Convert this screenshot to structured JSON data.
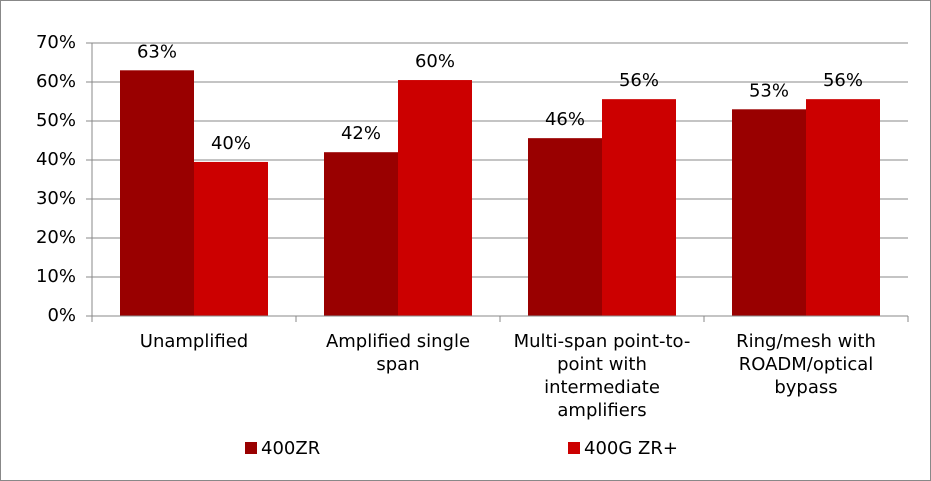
{
  "chart_data": {
    "type": "bar",
    "categories": [
      "Unamplified",
      "Amplified single span",
      "Multi-span point-to-point with intermediate amplifiers",
      "Ring/mesh with ROADM/optical bypass"
    ],
    "series": [
      {
        "name": "400ZR",
        "color": "#990000",
        "values": [
          63,
          42,
          45.6,
          53
        ],
        "value_labels": [
          "63%",
          "42%",
          "46%",
          "53%"
        ]
      },
      {
        "name": "400G ZR+",
        "color": "#cc0000",
        "values": [
          39.5,
          60.5,
          55.6,
          55.6
        ],
        "value_labels": [
          "40%",
          "60%",
          "56%",
          "56%"
        ]
      }
    ],
    "ylim": [
      0,
      70
    ],
    "yticks": [
      {
        "value": 0,
        "label": "0%"
      },
      {
        "value": 10,
        "label": "10%"
      },
      {
        "value": 20,
        "label": "20%"
      },
      {
        "value": 30,
        "label": "30%"
      },
      {
        "value": 40,
        "label": "40%"
      },
      {
        "value": 50,
        "label": "50%"
      },
      {
        "value": 60,
        "label": "60%"
      },
      {
        "value": 70,
        "label": "70%"
      }
    ],
    "grid": true,
    "legend": "bottom"
  }
}
